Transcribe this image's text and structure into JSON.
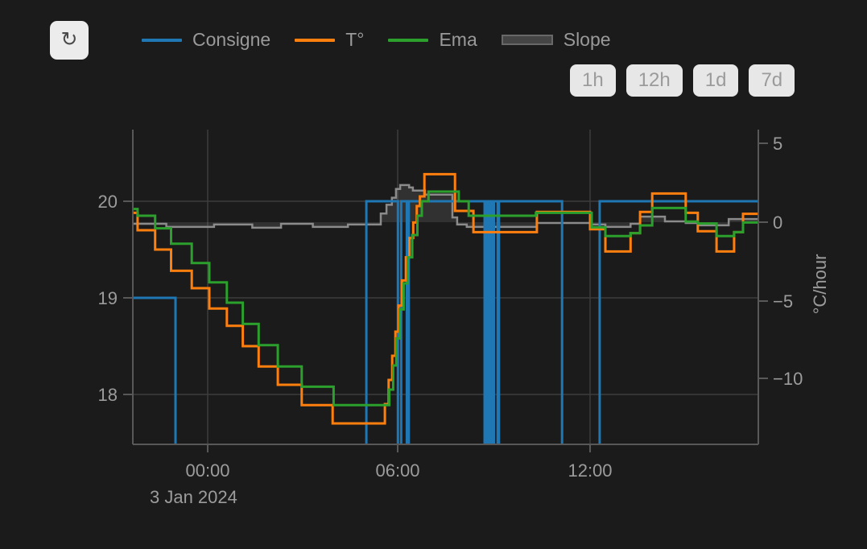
{
  "toolbar": {
    "refresh_icon": "↻",
    "range_buttons": [
      {
        "label": "1h"
      },
      {
        "label": "12h"
      },
      {
        "label": "1d"
      },
      {
        "label": "7d"
      }
    ]
  },
  "legend": {
    "items": [
      {
        "label": "Consigne",
        "color": "#1f77b4",
        "type": "line"
      },
      {
        "label": "T°",
        "color": "#ff7f0e",
        "type": "line"
      },
      {
        "label": "Ema",
        "color": "#2ca02c",
        "type": "line"
      },
      {
        "label": "Slope",
        "color": "#8b8b8b",
        "type": "area"
      }
    ]
  },
  "colors": {
    "background": "#1b1b1b",
    "grid": "#3d3d3d",
    "axis": "#585858",
    "text": "#9c9c9c",
    "button_bg": "#e7e7e7",
    "button_text": "#9b9b9b"
  },
  "chart_data": {
    "type": "line",
    "title": "",
    "x_axis": {
      "unit": "hours relative to midnight",
      "range_hours": [
        -2.35,
        17.28
      ],
      "date_label": "3 Jan 2024",
      "ticks": [
        {
          "t": 0,
          "label": "00:00"
        },
        {
          "t": 6,
          "label": "06:00"
        },
        {
          "t": 12,
          "label": "12:00"
        }
      ]
    },
    "y_axis_left": {
      "unit": "°C",
      "range": [
        17.48,
        20.73
      ],
      "ticks": [
        {
          "v": 20,
          "label": "20"
        },
        {
          "v": 19,
          "label": "19"
        },
        {
          "v": 18,
          "label": "18"
        }
      ]
    },
    "y_axis_right": {
      "title": "°C/hour",
      "range": [
        -14.1,
        5.8
      ],
      "ticks": [
        {
          "v": 5,
          "label": "5"
        },
        {
          "v": 0,
          "label": "0"
        },
        {
          "v": -5,
          "label": "−5"
        },
        {
          "v": -10,
          "label": "−10"
        }
      ]
    },
    "note": "Step (hv) series. Consigne value 17 encodes setpoint dropping below the visible range (rendered as clipped vertical lines).",
    "series": [
      {
        "id": "slope",
        "name": "Slope",
        "axis": "right",
        "color": "#8b8b8b",
        "width": 2.5,
        "fill": "rgba(150,150,150,0.18)",
        "points": [
          [
            -2.35,
            -0.1
          ],
          [
            -1.3,
            -0.3
          ],
          [
            0.2,
            -0.15
          ],
          [
            1.4,
            -0.35
          ],
          [
            2.3,
            -0.1
          ],
          [
            3.3,
            -0.3
          ],
          [
            4.4,
            -0.15
          ],
          [
            5.43,
            0.55
          ],
          [
            5.61,
            1.1
          ],
          [
            5.78,
            1.55
          ],
          [
            5.91,
            2.1
          ],
          [
            6.04,
            2.35
          ],
          [
            6.32,
            2.2
          ],
          [
            6.44,
            2.0
          ],
          [
            6.82,
            1.75
          ],
          [
            7.68,
            0.3
          ],
          [
            7.83,
            -0.15
          ],
          [
            8.13,
            -0.3
          ],
          [
            10.33,
            -0.05
          ],
          [
            12.0,
            -0.15
          ],
          [
            12.48,
            -0.3
          ],
          [
            13.27,
            -0.1
          ],
          [
            13.57,
            0.35
          ],
          [
            14.35,
            0.05
          ],
          [
            15.0,
            -0.05
          ],
          [
            15.38,
            -0.2
          ],
          [
            16.35,
            0.2
          ]
        ]
      },
      {
        "id": "consigne",
        "name": "Consigne",
        "axis": "left",
        "color": "#1f77b4",
        "width": 3,
        "points": [
          [
            -2.35,
            19
          ],
          [
            -1.01,
            17
          ],
          [
            4.98,
            20
          ],
          [
            5.97,
            17
          ],
          [
            6.07,
            20
          ],
          [
            6.25,
            17
          ],
          [
            6.31,
            20
          ],
          [
            8.69,
            17
          ],
          [
            8.72,
            20
          ],
          [
            8.79,
            17
          ],
          [
            8.82,
            20
          ],
          [
            8.87,
            17
          ],
          [
            8.9,
            20
          ],
          [
            8.95,
            17
          ],
          [
            8.98,
            20
          ],
          [
            9.1,
            17
          ],
          [
            9.14,
            20
          ],
          [
            11.12,
            17
          ],
          [
            12.3,
            20
          ]
        ]
      },
      {
        "id": "temperature",
        "name": "T°",
        "axis": "left",
        "color": "#ff7f0e",
        "width": 3,
        "points": [
          [
            -2.35,
            19.88
          ],
          [
            -2.2,
            19.7
          ],
          [
            -1.65,
            19.5
          ],
          [
            -1.15,
            19.28
          ],
          [
            -0.5,
            19.1
          ],
          [
            0.05,
            18.89
          ],
          [
            0.6,
            18.71
          ],
          [
            1.1,
            18.5
          ],
          [
            1.6,
            18.29
          ],
          [
            2.2,
            18.1
          ],
          [
            2.95,
            17.89
          ],
          [
            3.92,
            17.7
          ],
          [
            5.56,
            17.9
          ],
          [
            5.68,
            18.15
          ],
          [
            5.79,
            18.4
          ],
          [
            5.89,
            18.65
          ],
          [
            5.99,
            18.92
          ],
          [
            6.1,
            19.18
          ],
          [
            6.22,
            19.42
          ],
          [
            6.33,
            19.62
          ],
          [
            6.45,
            19.78
          ],
          [
            6.56,
            19.95
          ],
          [
            6.66,
            20.05
          ],
          [
            6.8,
            20.28
          ],
          [
            7.76,
            19.9
          ],
          [
            8.34,
            19.68
          ],
          [
            10.33,
            19.89
          ],
          [
            12.0,
            19.71
          ],
          [
            12.48,
            19.48
          ],
          [
            13.27,
            19.67
          ],
          [
            13.57,
            19.89
          ],
          [
            13.95,
            20.08
          ],
          [
            15.0,
            19.88
          ],
          [
            15.38,
            19.69
          ],
          [
            15.97,
            19.48
          ],
          [
            16.52,
            19.68
          ],
          [
            16.8,
            19.87
          ]
        ]
      },
      {
        "id": "ema",
        "name": "Ema",
        "axis": "left",
        "color": "#2ca02c",
        "width": 3,
        "points": [
          [
            -2.35,
            19.92
          ],
          [
            -2.2,
            19.85
          ],
          [
            -1.65,
            19.72
          ],
          [
            -1.15,
            19.56
          ],
          [
            -0.5,
            19.36
          ],
          [
            0.05,
            19.16
          ],
          [
            0.6,
            18.95
          ],
          [
            1.1,
            18.73
          ],
          [
            1.6,
            18.51
          ],
          [
            2.2,
            18.29
          ],
          [
            2.95,
            18.08
          ],
          [
            3.95,
            17.89
          ],
          [
            5.7,
            18.05
          ],
          [
            5.82,
            18.3
          ],
          [
            5.92,
            18.58
          ],
          [
            6.03,
            18.88
          ],
          [
            6.15,
            19.15
          ],
          [
            6.28,
            19.42
          ],
          [
            6.42,
            19.65
          ],
          [
            6.58,
            19.85
          ],
          [
            6.72,
            20.0
          ],
          [
            6.93,
            20.1
          ],
          [
            7.88,
            20.0
          ],
          [
            8.19,
            19.85
          ],
          [
            10.3,
            19.88
          ],
          [
            12.05,
            19.73
          ],
          [
            12.48,
            19.64
          ],
          [
            13.27,
            19.67
          ],
          [
            13.57,
            19.75
          ],
          [
            13.95,
            19.93
          ],
          [
            15.0,
            19.79
          ],
          [
            15.38,
            19.77
          ],
          [
            15.97,
            19.64
          ],
          [
            16.52,
            19.68
          ],
          [
            16.8,
            19.78
          ]
        ]
      }
    ]
  }
}
